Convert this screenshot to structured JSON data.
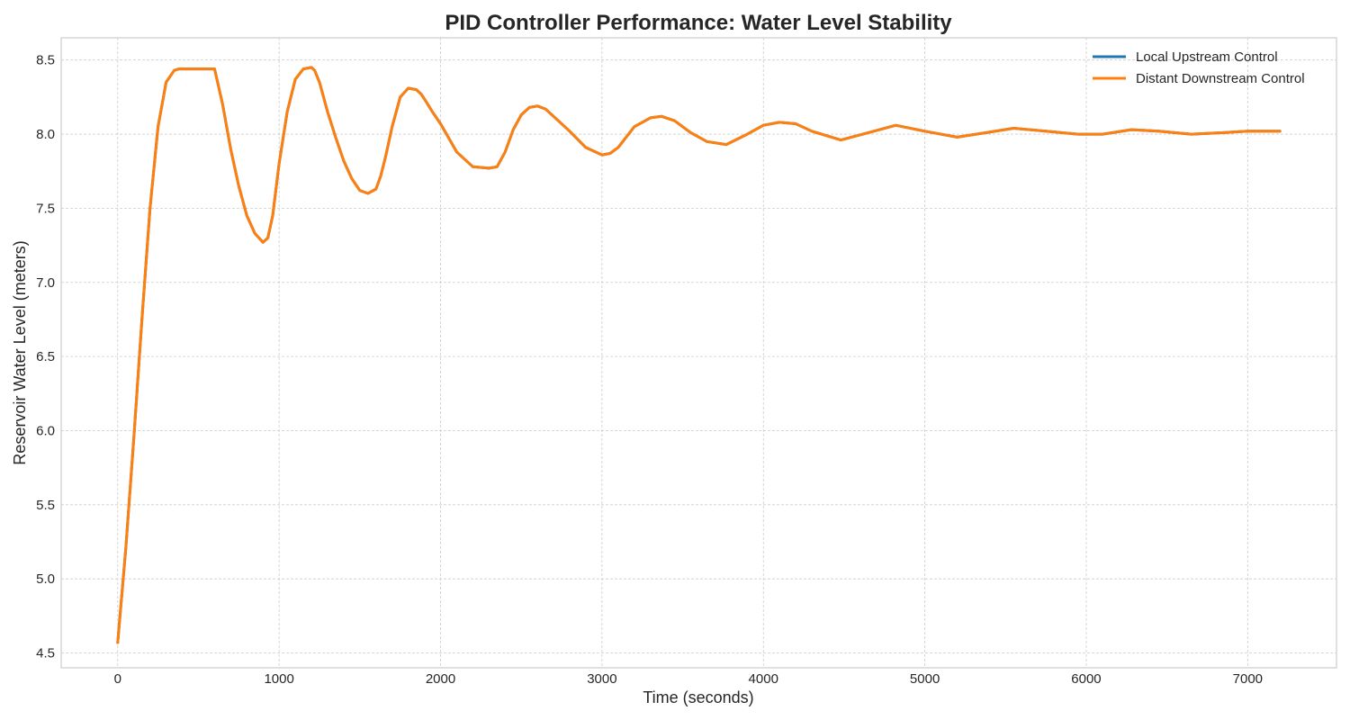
{
  "chart_data": {
    "type": "line",
    "title": "PID Controller Performance: Water Level Stability",
    "xlabel": "Time (seconds)",
    "ylabel": "Reservoir Water Level (meters)",
    "xlim": [
      -350,
      7550
    ],
    "ylim": [
      4.4,
      8.65
    ],
    "xticks": [
      0,
      1000,
      2000,
      3000,
      4000,
      5000,
      6000,
      7000
    ],
    "yticks": [
      4.5,
      5.0,
      5.5,
      6.0,
      6.5,
      7.0,
      7.5,
      8.0,
      8.5
    ],
    "grid": true,
    "legend_position": "top-right",
    "series": [
      {
        "name": "Local Upstream Control",
        "color": "#1f77b4",
        "x": [
          0,
          50,
          100,
          150,
          200,
          250,
          300,
          350,
          380,
          400,
          450,
          500,
          550,
          600,
          650,
          700,
          750,
          800,
          850,
          900,
          930,
          960,
          1000,
          1050,
          1100,
          1150,
          1200,
          1220,
          1250,
          1300,
          1350,
          1400,
          1450,
          1500,
          1550,
          1600,
          1630,
          1660,
          1700,
          1750,
          1800,
          1850,
          1880,
          1910,
          1950,
          2000,
          2100,
          2200,
          2300,
          2350,
          2400,
          2450,
          2500,
          2550,
          2600,
          2650,
          2700,
          2800,
          2900,
          3000,
          3050,
          3100,
          3200,
          3300,
          3370,
          3450,
          3550,
          3650,
          3770,
          3900,
          4000,
          4100,
          4200,
          4300,
          4480,
          4650,
          4820,
          5000,
          5200,
          5380,
          5550,
          5750,
          5950,
          6100,
          6280,
          6450,
          6650,
          6850,
          7000,
          7200
        ],
        "y": [
          4.57,
          5.2,
          5.95,
          6.75,
          7.5,
          8.05,
          8.35,
          8.43,
          8.44,
          8.44,
          8.44,
          8.44,
          8.44,
          8.44,
          8.2,
          7.9,
          7.65,
          7.45,
          7.33,
          7.27,
          7.3,
          7.45,
          7.8,
          8.15,
          8.37,
          8.44,
          8.45,
          8.43,
          8.35,
          8.15,
          7.98,
          7.82,
          7.7,
          7.62,
          7.6,
          7.63,
          7.72,
          7.85,
          8.05,
          8.25,
          8.31,
          8.3,
          8.27,
          8.22,
          8.15,
          8.07,
          7.88,
          7.78,
          7.77,
          7.78,
          7.88,
          8.03,
          8.13,
          8.18,
          8.19,
          8.17,
          8.12,
          8.02,
          7.91,
          7.86,
          7.87,
          7.91,
          8.05,
          8.11,
          8.12,
          8.09,
          8.01,
          7.95,
          7.93,
          8.0,
          8.06,
          8.08,
          8.07,
          8.02,
          7.96,
          8.01,
          8.06,
          8.02,
          7.98,
          8.01,
          8.04,
          8.02,
          8.0,
          8.0,
          8.03,
          8.02,
          8.0,
          8.01,
          8.02,
          8.02
        ]
      },
      {
        "name": "Distant Downstream Control",
        "color": "#ff7f0e",
        "x": [
          0,
          50,
          100,
          150,
          200,
          250,
          300,
          350,
          380,
          400,
          450,
          500,
          550,
          600,
          650,
          700,
          750,
          800,
          850,
          900,
          930,
          960,
          1000,
          1050,
          1100,
          1150,
          1200,
          1220,
          1250,
          1300,
          1350,
          1400,
          1450,
          1500,
          1550,
          1600,
          1630,
          1660,
          1700,
          1750,
          1800,
          1850,
          1880,
          1910,
          1950,
          2000,
          2100,
          2200,
          2300,
          2350,
          2400,
          2450,
          2500,
          2550,
          2600,
          2650,
          2700,
          2800,
          2900,
          3000,
          3050,
          3100,
          3200,
          3300,
          3370,
          3450,
          3550,
          3650,
          3770,
          3900,
          4000,
          4100,
          4200,
          4300,
          4480,
          4650,
          4820,
          5000,
          5200,
          5380,
          5550,
          5750,
          5950,
          6100,
          6280,
          6450,
          6650,
          6850,
          7000,
          7200
        ],
        "y": [
          4.57,
          5.2,
          5.95,
          6.75,
          7.5,
          8.05,
          8.35,
          8.43,
          8.44,
          8.44,
          8.44,
          8.44,
          8.44,
          8.44,
          8.2,
          7.9,
          7.65,
          7.45,
          7.33,
          7.27,
          7.3,
          7.45,
          7.8,
          8.15,
          8.37,
          8.44,
          8.45,
          8.43,
          8.35,
          8.15,
          7.98,
          7.82,
          7.7,
          7.62,
          7.6,
          7.63,
          7.72,
          7.85,
          8.05,
          8.25,
          8.31,
          8.3,
          8.27,
          8.22,
          8.15,
          8.07,
          7.88,
          7.78,
          7.77,
          7.78,
          7.88,
          8.03,
          8.13,
          8.18,
          8.19,
          8.17,
          8.12,
          8.02,
          7.91,
          7.86,
          7.87,
          7.91,
          8.05,
          8.11,
          8.12,
          8.09,
          8.01,
          7.95,
          7.93,
          8.0,
          8.06,
          8.08,
          8.07,
          8.02,
          7.96,
          8.01,
          8.06,
          8.02,
          7.98,
          8.01,
          8.04,
          8.02,
          8.0,
          8.0,
          8.03,
          8.02,
          8.0,
          8.01,
          8.02,
          8.02
        ]
      }
    ]
  }
}
